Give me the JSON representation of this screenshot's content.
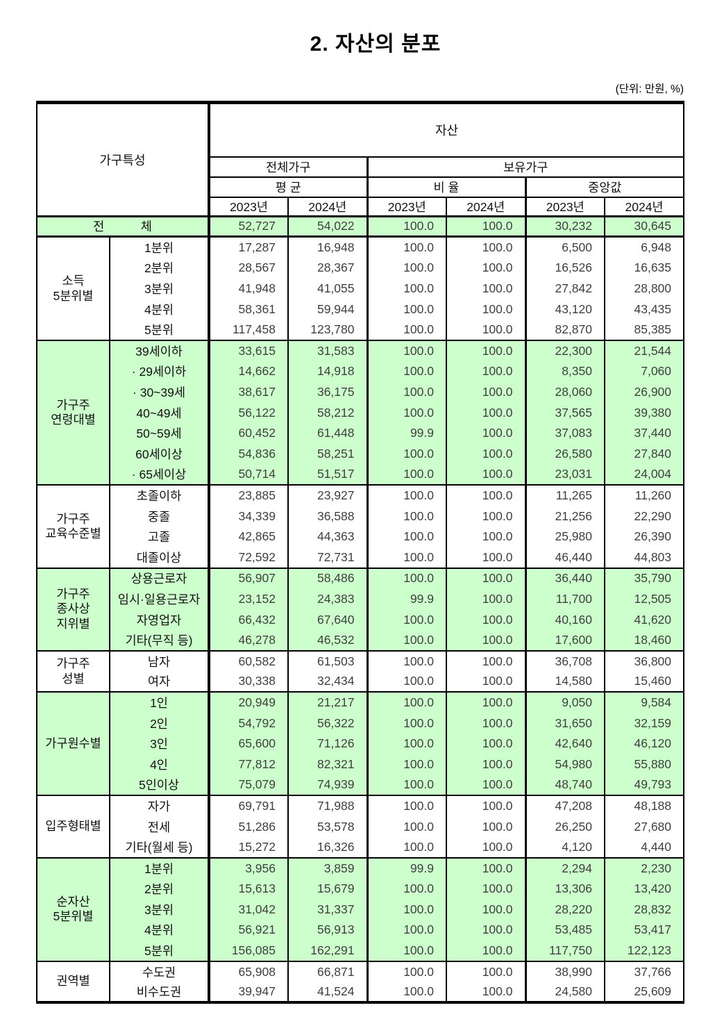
{
  "page": {
    "title": "2. 자산의 분포",
    "unit_note": "(단위: 만원, %)"
  },
  "colors": {
    "highlight_green": "#ccffcc",
    "border_black": "#000000",
    "value_text": "#3f3f3f",
    "label_text": "#111111"
  },
  "header": {
    "corner_label": "가구특성",
    "asset_label": "자산",
    "groups": [
      {
        "label": "전체가구",
        "span": 2
      },
      {
        "label": "보유가구",
        "span": 4
      }
    ],
    "subgroups": [
      {
        "label": "평 균",
        "span": 2
      },
      {
        "label": "비 율",
        "span": 2
      },
      {
        "label": "중앙값",
        "span": 2
      }
    ],
    "years": [
      "2023년",
      "2024년",
      "2023년",
      "2024년",
      "2023년",
      "2024년"
    ]
  },
  "total_row": {
    "label": "전　　　체",
    "highlight": true,
    "values": [
      "52,727",
      "54,022",
      "100.0",
      "100.0",
      "30,232",
      "30,645"
    ]
  },
  "sections": [
    {
      "group": [
        "소득",
        "5분위별"
      ],
      "highlight": false,
      "rows": [
        {
          "label": "1분위",
          "values": [
            "17,287",
            "16,948",
            "100.0",
            "100.0",
            "6,500",
            "6,948"
          ]
        },
        {
          "label": "2분위",
          "values": [
            "28,567",
            "28,367",
            "100.0",
            "100.0",
            "16,526",
            "16,635"
          ]
        },
        {
          "label": "3분위",
          "values": [
            "41,948",
            "41,055",
            "100.0",
            "100.0",
            "27,842",
            "28,800"
          ]
        },
        {
          "label": "4분위",
          "values": [
            "58,361",
            "59,944",
            "100.0",
            "100.0",
            "43,120",
            "43,435"
          ]
        },
        {
          "label": "5분위",
          "values": [
            "117,458",
            "123,780",
            "100.0",
            "100.0",
            "82,870",
            "85,385"
          ]
        }
      ]
    },
    {
      "group": [
        "가구주",
        "연령대별"
      ],
      "highlight": true,
      "rows": [
        {
          "label": "39세이하",
          "values": [
            "33,615",
            "31,583",
            "100.0",
            "100.0",
            "22,300",
            "21,544"
          ]
        },
        {
          "label": "· 29세이하",
          "values": [
            "14,662",
            "14,918",
            "100.0",
            "100.0",
            "8,350",
            "7,060"
          ]
        },
        {
          "label": "· 30~39세",
          "values": [
            "38,617",
            "36,175",
            "100.0",
            "100.0",
            "28,060",
            "26,900"
          ]
        },
        {
          "label": "40~49세",
          "values": [
            "56,122",
            "58,212",
            "100.0",
            "100.0",
            "37,565",
            "39,380"
          ]
        },
        {
          "label": "50~59세",
          "values": [
            "60,452",
            "61,448",
            "99.9",
            "100.0",
            "37,083",
            "37,440"
          ]
        },
        {
          "label": "60세이상",
          "values": [
            "54,836",
            "58,251",
            "100.0",
            "100.0",
            "26,580",
            "27,840"
          ]
        },
        {
          "label": "· 65세이상",
          "values": [
            "50,714",
            "51,517",
            "100.0",
            "100.0",
            "23,031",
            "24,004"
          ]
        }
      ]
    },
    {
      "group": [
        "가구주",
        "교육수준별"
      ],
      "highlight": false,
      "rows": [
        {
          "label": "초졸이하",
          "values": [
            "23,885",
            "23,927",
            "100.0",
            "100.0",
            "11,265",
            "11,260"
          ]
        },
        {
          "label": "중졸",
          "values": [
            "34,339",
            "36,588",
            "100.0",
            "100.0",
            "21,256",
            "22,290"
          ]
        },
        {
          "label": "고졸",
          "values": [
            "42,865",
            "44,363",
            "100.0",
            "100.0",
            "25,980",
            "26,390"
          ]
        },
        {
          "label": "대졸이상",
          "values": [
            "72,592",
            "72,731",
            "100.0",
            "100.0",
            "46,440",
            "44,803"
          ]
        }
      ]
    },
    {
      "group": [
        "가구주",
        "종사상",
        "지위별"
      ],
      "highlight": true,
      "rows": [
        {
          "label": "상용근로자",
          "values": [
            "56,907",
            "58,486",
            "100.0",
            "100.0",
            "36,440",
            "35,790"
          ]
        },
        {
          "label": "임시·일용근로자",
          "values": [
            "23,152",
            "24,383",
            "99.9",
            "100.0",
            "11,700",
            "12,505"
          ]
        },
        {
          "label": "자영업자",
          "values": [
            "66,432",
            "67,640",
            "100.0",
            "100.0",
            "40,160",
            "41,620"
          ]
        },
        {
          "label": "기타(무직 등)",
          "values": [
            "46,278",
            "46,532",
            "100.0",
            "100.0",
            "17,600",
            "18,460"
          ]
        }
      ]
    },
    {
      "group": [
        "가구주",
        "성별"
      ],
      "highlight": false,
      "rows": [
        {
          "label": "남자",
          "values": [
            "60,582",
            "61,503",
            "100.0",
            "100.0",
            "36,708",
            "36,800"
          ]
        },
        {
          "label": "여자",
          "values": [
            "30,338",
            "32,434",
            "100.0",
            "100.0",
            "14,580",
            "15,460"
          ]
        }
      ]
    },
    {
      "group": [
        "가구원수별"
      ],
      "highlight": true,
      "rows": [
        {
          "label": "1인",
          "values": [
            "20,949",
            "21,217",
            "100.0",
            "100.0",
            "9,050",
            "9,584"
          ]
        },
        {
          "label": "2인",
          "values": [
            "54,792",
            "56,322",
            "100.0",
            "100.0",
            "31,650",
            "32,159"
          ]
        },
        {
          "label": "3인",
          "values": [
            "65,600",
            "71,126",
            "100.0",
            "100.0",
            "42,640",
            "46,120"
          ]
        },
        {
          "label": "4인",
          "values": [
            "77,812",
            "82,321",
            "100.0",
            "100.0",
            "54,980",
            "55,880"
          ]
        },
        {
          "label": "5인이상",
          "values": [
            "75,079",
            "74,939",
            "100.0",
            "100.0",
            "48,740",
            "49,793"
          ]
        }
      ]
    },
    {
      "group": [
        "입주형태별"
      ],
      "highlight": false,
      "rows": [
        {
          "label": "자가",
          "values": [
            "69,791",
            "71,988",
            "100.0",
            "100.0",
            "47,208",
            "48,188"
          ]
        },
        {
          "label": "전세",
          "values": [
            "51,286",
            "53,578",
            "100.0",
            "100.0",
            "26,250",
            "27,680"
          ]
        },
        {
          "label": "기타(월세 등)",
          "values": [
            "15,272",
            "16,326",
            "100.0",
            "100.0",
            "4,120",
            "4,440"
          ]
        }
      ]
    },
    {
      "group": [
        "순자산",
        "5분위별"
      ],
      "highlight": true,
      "rows": [
        {
          "label": "1분위",
          "values": [
            "3,956",
            "3,859",
            "99.9",
            "100.0",
            "2,294",
            "2,230"
          ]
        },
        {
          "label": "2분위",
          "values": [
            "15,613",
            "15,679",
            "100.0",
            "100.0",
            "13,306",
            "13,420"
          ]
        },
        {
          "label": "3분위",
          "values": [
            "31,042",
            "31,337",
            "100.0",
            "100.0",
            "28,220",
            "28,832"
          ]
        },
        {
          "label": "4분위",
          "values": [
            "56,921",
            "56,913",
            "100.0",
            "100.0",
            "53,485",
            "53,417"
          ]
        },
        {
          "label": "5분위",
          "values": [
            "156,085",
            "162,291",
            "100.0",
            "100.0",
            "117,750",
            "122,123"
          ]
        }
      ]
    },
    {
      "group": [
        "권역별"
      ],
      "highlight": false,
      "rows": [
        {
          "label": "수도권",
          "values": [
            "65,908",
            "66,871",
            "100.0",
            "100.0",
            "38,990",
            "37,766"
          ]
        },
        {
          "label": "비수도권",
          "values": [
            "39,947",
            "41,524",
            "100.0",
            "100.0",
            "24,580",
            "25,609"
          ]
        }
      ]
    }
  ]
}
